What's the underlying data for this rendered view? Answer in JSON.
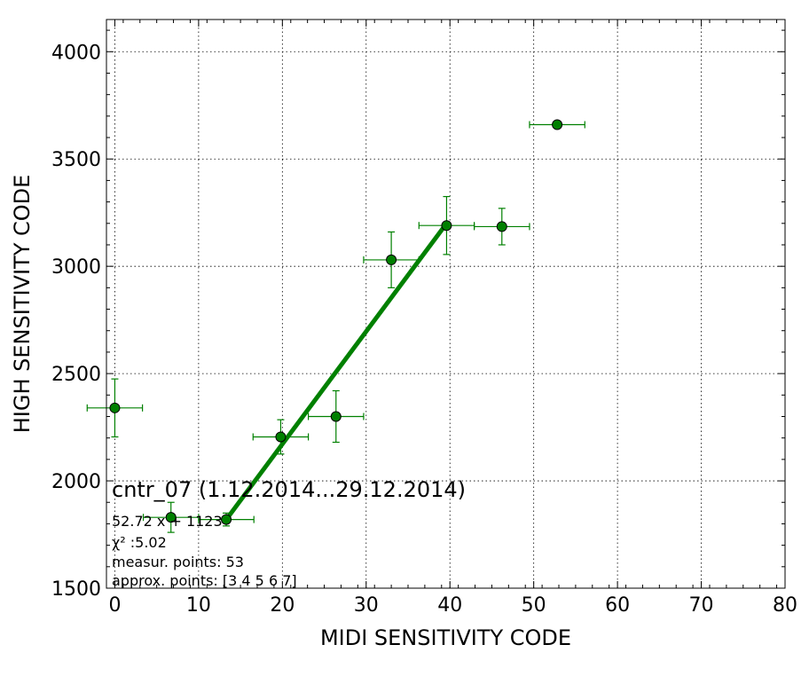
{
  "chart_data": {
    "type": "scatter",
    "xlabel": "MIDI SENSITIVITY CODE",
    "ylabel": "HIGH SENSITIVITY CODE",
    "xlim": [
      -1,
      80
    ],
    "ylim": [
      1500,
      4150
    ],
    "xticks": [
      0,
      10,
      20,
      30,
      40,
      50,
      60,
      70,
      80
    ],
    "yticks": [
      1500,
      2000,
      2500,
      3000,
      3500,
      4000
    ],
    "grid": true,
    "point_color": "#008000",
    "line_color": "#008000",
    "points": [
      {
        "x": 0.0,
        "y": 2340,
        "xerr": 3.3,
        "yerr": 135
      },
      {
        "x": 6.7,
        "y": 1830,
        "xerr": 3.3,
        "yerr": 70
      },
      {
        "x": 13.3,
        "y": 1820,
        "xerr": 3.3,
        "yerr": 30
      },
      {
        "x": 19.8,
        "y": 2205,
        "xerr": 3.3,
        "yerr": 80
      },
      {
        "x": 26.4,
        "y": 2300,
        "xerr": 3.3,
        "yerr": 120
      },
      {
        "x": 33.0,
        "y": 3030,
        "xerr": 3.3,
        "yerr": 130
      },
      {
        "x": 39.6,
        "y": 3190,
        "xerr": 3.3,
        "yerr": 135
      },
      {
        "x": 46.2,
        "y": 3185,
        "xerr": 3.3,
        "yerr": 85
      },
      {
        "x": 52.8,
        "y": 3660,
        "xerr": 3.3,
        "yerr": 0
      }
    ],
    "fit_line": {
      "x": [
        13.3,
        39.6
      ],
      "y": [
        1820,
        3200
      ]
    },
    "annotations": {
      "title_text": "cntr_07 (1.12.2014...29.12.2014)",
      "equation": "52.72 x + 1123",
      "chi2": "χ² :5.02",
      "measur_points": "measur. points: 53",
      "approx_points": "approx. points: [3 4 5 6 7]"
    }
  }
}
